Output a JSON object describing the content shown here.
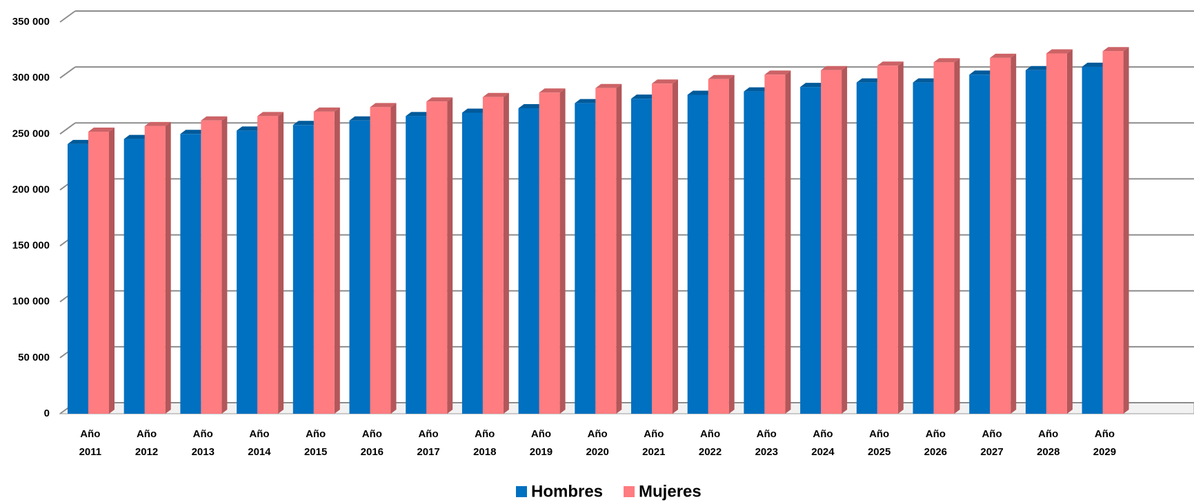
{
  "chart_data": {
    "type": "bar",
    "categories": [
      "Año 2011",
      "Año 2012",
      "Año 2013",
      "Año 2014",
      "Año 2015",
      "Año 2016",
      "Año 2017",
      "Año 2018",
      "Año 2019",
      "Año 2020",
      "Año 2021",
      "Año 2022",
      "Año 2023",
      "Año 2024",
      "Año 2025",
      "Año 2026",
      "Año 2027",
      "Año 2028",
      "Año 2029",
      null
    ],
    "series": [
      {
        "name": "Hombres",
        "color": "#0070c0",
        "values": [
          241000,
          245500,
          250000,
          253000,
          258000,
          262000,
          266000,
          269000,
          273000,
          277500,
          281500,
          285000,
          288000,
          292000,
          296000,
          296000,
          303000,
          307000,
          310000,
          null
        ]
      },
      {
        "name": "Mujeres",
        "color": "#ff7c80",
        "values": [
          252000,
          257000,
          262000,
          266000,
          270000,
          274000,
          279000,
          283000,
          287000,
          291000,
          295000,
          299000,
          303000,
          307000,
          311000,
          314000,
          318000,
          322000,
          324000,
          null
        ]
      }
    ],
    "ylim": [
      0,
      350000
    ],
    "yticks": [
      0,
      {
        "value": 50000,
        "label": "50 000"
      },
      {
        "value": 100000,
        "label": "100 000"
      },
      {
        "value": 150000,
        "label": "150 000"
      },
      {
        "value": 200000,
        "label": "200 000"
      },
      {
        "value": 250000,
        "label": "250 000"
      },
      {
        "value": 300000,
        "label": "300 000"
      },
      {
        "value": 350000,
        "label": "350 000"
      }
    ],
    "grid": true,
    "legend": "bottom"
  }
}
